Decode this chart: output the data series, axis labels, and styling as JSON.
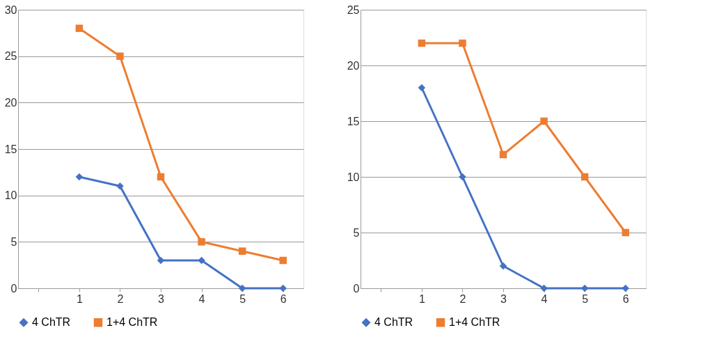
{
  "chart_data": [
    {
      "type": "line",
      "categories": [
        null,
        "1",
        "2",
        "3",
        "4",
        "5",
        "6"
      ],
      "ylim": [
        0,
        30
      ],
      "yticks": [
        0,
        5,
        10,
        15,
        20,
        25,
        30
      ],
      "grid": "y",
      "legend": "bottom",
      "series": [
        {
          "name": "4 ChTR",
          "color": "#4472c4",
          "marker": "diamond",
          "values": [
            null,
            12,
            11,
            3,
            3,
            0,
            0
          ]
        },
        {
          "name": "1+4 ChTR",
          "color": "#ed7d31",
          "marker": "square",
          "values": [
            null,
            28,
            25,
            12,
            5,
            4,
            3
          ]
        }
      ]
    },
    {
      "type": "line",
      "categories": [
        null,
        "1",
        "2",
        "3",
        "4",
        "5",
        "6"
      ],
      "ylim": [
        0,
        25
      ],
      "yticks": [
        0,
        5,
        10,
        15,
        20,
        25
      ],
      "grid": "y",
      "legend": "bottom",
      "series": [
        {
          "name": "4 ChTR",
          "color": "#4472c4",
          "marker": "diamond",
          "values": [
            null,
            18,
            10,
            2,
            0,
            0,
            0
          ]
        },
        {
          "name": "1+4 ChTR",
          "color": "#ed7d31",
          "marker": "square",
          "values": [
            null,
            22,
            22,
            12,
            15,
            10,
            5
          ]
        }
      ]
    }
  ]
}
